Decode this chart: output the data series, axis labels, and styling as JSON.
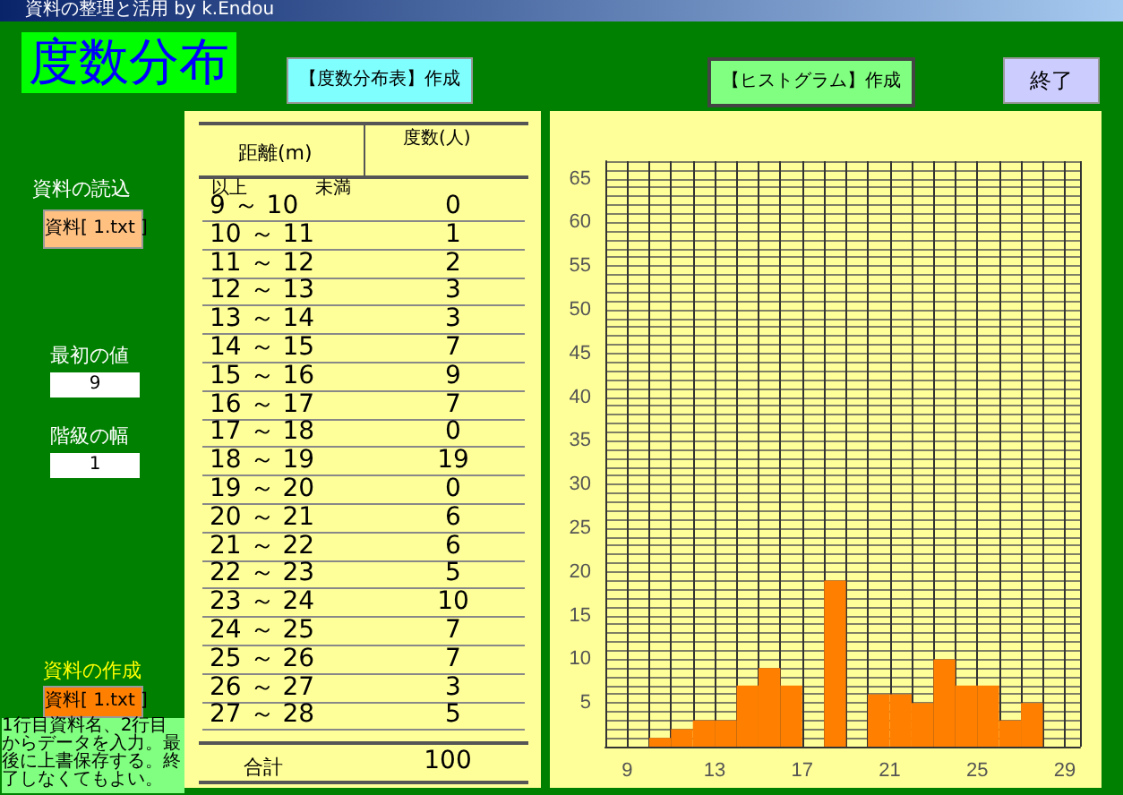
{
  "chart_data": {
    "type": "histogram",
    "title": "度数分布",
    "bins": [
      9,
      10,
      11,
      12,
      13,
      14,
      15,
      16,
      17,
      18,
      19,
      20,
      21,
      22,
      23,
      24,
      25,
      26,
      27,
      28
    ],
    "values": [
      0,
      1,
      2,
      3,
      3,
      7,
      9,
      7,
      0,
      19,
      0,
      6,
      6,
      5,
      10,
      7,
      7,
      3,
      5
    ],
    "color": "#ff8000",
    "grid": true,
    "xlim": [
      8,
      29.7
    ],
    "xticks": [
      9,
      13,
      17,
      21,
      25,
      29
    ],
    "ylim": [
      0,
      67
    ],
    "yticks": [
      5,
      10,
      15,
      20,
      25,
      30,
      35,
      40,
      45,
      50,
      55,
      60,
      65
    ],
    "annotations": [
      "資料の整理と活用 by k.Endou",
      "【度数分布表】作成",
      "【ヒストグラム】作成",
      "終了",
      "資料の読込",
      "資料[ 1.txt ]",
      "最初の値",
      "9",
      "階級の幅",
      "1",
      "資料の作成",
      "資料[ 1.txt ]",
      "1行目資料名、2行目からデータを入力。最後に上書保存する。終了しなくてもよい。",
      "以上",
      "未満",
      "合計",
      "100",
      "距離(m)",
      "度数(人)",
      "9 ～ 10",
      "0",
      "10 ～ 11",
      "1",
      "11 ～ 12",
      "2",
      "12 ～ 13",
      "3",
      "13 ～ 14",
      "3",
      "14 ～ 15",
      "7",
      "15 ～ 16",
      "9",
      "16 ～ 17",
      "7",
      "17 ～ 18",
      "0",
      "18 ～ 19",
      "19",
      "19 ～ 20",
      "0",
      "20 ～ 21",
      "6",
      "21 ～ 22",
      "6",
      "22 ～ 23",
      "5",
      "23 ～ 24",
      "10",
      "24 ～ 25",
      "7",
      "25 ～ 26",
      "7",
      "26 ～ 27",
      "3",
      "27 ～ 28",
      "5"
    ]
  }
}
